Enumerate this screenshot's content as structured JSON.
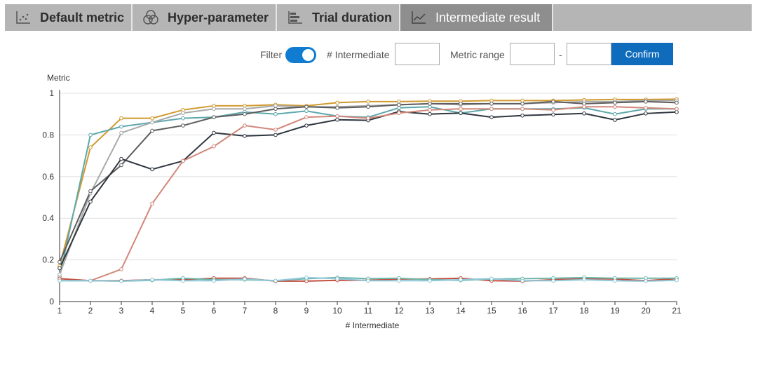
{
  "tabs": [
    {
      "label": "Default metric",
      "icon": "scatter-icon"
    },
    {
      "label": "Hyper-parameter",
      "icon": "circles-icon"
    },
    {
      "label": "Trial duration",
      "icon": "bar-icon"
    },
    {
      "label": "Intermediate result",
      "icon": "line-chart-icon"
    }
  ],
  "toolbar": {
    "filter_label": "Filter",
    "filter_on": true,
    "intermediate_label": "# Intermediate",
    "intermediate_value": "",
    "metric_range_label": "Metric range",
    "range_min": "",
    "range_sep": "-",
    "range_max": "",
    "confirm_label": "Confirm"
  },
  "chart_data": {
    "type": "line",
    "ylabel": "Metric",
    "xlabel": "# Intermediate",
    "x": [
      1,
      2,
      3,
      4,
      5,
      6,
      7,
      8,
      9,
      10,
      11,
      12,
      13,
      14,
      15,
      16,
      17,
      18,
      19,
      20,
      21
    ],
    "ylim": [
      0,
      1
    ],
    "yticks": [
      "0",
      "0.2",
      "0.4",
      "0.6",
      "0.8",
      "1"
    ],
    "grid": true,
    "legend": "none",
    "series": [
      {
        "color": "#d19a2e",
        "values": [
          0.17,
          0.74,
          0.88,
          0.88,
          0.92,
          0.94,
          0.94,
          0.945,
          0.94,
          0.955,
          0.96,
          0.96,
          0.962,
          0.962,
          0.965,
          0.965,
          0.965,
          0.968,
          0.97,
          0.97,
          0.972
        ]
      },
      {
        "color": "#5ea8ad",
        "values": [
          0.12,
          0.8,
          0.84,
          0.86,
          0.88,
          0.885,
          0.91,
          0.9,
          0.915,
          0.89,
          0.885,
          0.93,
          0.935,
          0.905,
          0.925,
          0.925,
          0.925,
          0.93,
          0.9,
          0.925,
          0.925
        ]
      },
      {
        "color": "#a9a9a9",
        "values": [
          0.13,
          0.52,
          0.81,
          0.86,
          0.905,
          0.925,
          0.925,
          0.94,
          0.935,
          0.935,
          0.94,
          0.945,
          0.95,
          0.945,
          0.95,
          0.95,
          0.955,
          0.96,
          0.96,
          0.965,
          0.965
        ]
      },
      {
        "color": "#5d5d5d",
        "values": [
          0.19,
          0.53,
          0.655,
          0.82,
          0.845,
          0.885,
          0.9,
          0.925,
          0.935,
          0.93,
          0.935,
          0.945,
          0.95,
          0.95,
          0.95,
          0.95,
          0.96,
          0.95,
          0.955,
          0.96,
          0.955
        ]
      },
      {
        "color": "#2f3640",
        "values": [
          0.16,
          0.48,
          0.685,
          0.635,
          0.675,
          0.81,
          0.795,
          0.8,
          0.845,
          0.873,
          0.87,
          0.912,
          0.9,
          0.905,
          0.885,
          0.893,
          0.898,
          0.903,
          0.872,
          0.903,
          0.91
        ]
      },
      {
        "color": "#d2877a",
        "values": [
          0.11,
          0.1,
          0.155,
          0.47,
          0.675,
          0.745,
          0.845,
          0.825,
          0.885,
          0.89,
          0.88,
          0.905,
          0.92,
          0.925,
          0.925,
          0.925,
          0.92,
          0.935,
          0.935,
          0.93,
          0.925
        ]
      },
      {
        "color": "#c44e3f",
        "values": [
          0.11,
          0.1,
          0.1,
          0.105,
          0.105,
          0.112,
          0.112,
          0.098,
          0.098,
          0.102,
          0.102,
          0.108,
          0.108,
          0.112,
          0.1,
          0.098,
          0.105,
          0.11,
          0.108,
          0.1,
          0.11
        ]
      },
      {
        "color": "#6cb7a8",
        "values": [
          0.1,
          0.1,
          0.098,
          0.102,
          0.112,
          0.105,
          0.105,
          0.1,
          0.11,
          0.115,
          0.11,
          0.112,
          0.105,
          0.102,
          0.108,
          0.11,
          0.112,
          0.115,
          0.112,
          0.112,
          0.112
        ]
      },
      {
        "color": "#8fc7d8",
        "values": [
          0.1,
          0.1,
          0.098,
          0.105,
          0.1,
          0.1,
          0.108,
          0.1,
          0.115,
          0.11,
          0.1,
          0.1,
          0.1,
          0.105,
          0.11,
          0.1,
          0.1,
          0.105,
          0.1,
          0.098,
          0.102
        ]
      }
    ]
  }
}
